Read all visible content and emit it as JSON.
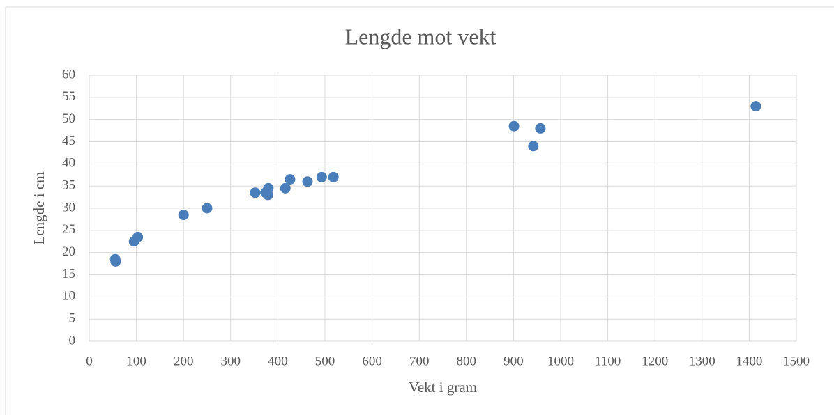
{
  "chart_data": {
    "type": "scatter",
    "title": "Lengde mot vekt",
    "x_label": "Vekt i gram",
    "y_label": "Lengde i cm",
    "series": [
      {
        "name": "Lengde",
        "color": "#4a7ebb",
        "x": [
          55,
          56,
          95,
          103,
          200,
          250,
          352,
          374,
          379,
          380,
          416,
          426,
          463,
          493,
          518,
          901,
          942,
          957,
          1414
        ],
        "values": [
          18.5,
          18,
          22.5,
          23.5,
          28.5,
          30,
          33.5,
          33.5,
          33,
          34.5,
          34.5,
          36.5,
          36,
          37,
          37,
          48.5,
          44,
          48,
          53
        ]
      }
    ],
    "xlim": [
      0,
      1500
    ],
    "xticks": [
      0,
      100,
      200,
      300,
      400,
      500,
      600,
      700,
      800,
      900,
      1000,
      1100,
      1200,
      1300,
      1400,
      1500
    ],
    "ylim": [
      0,
      60
    ],
    "yticks": [
      0,
      5,
      10,
      15,
      20,
      25,
      30,
      35,
      40,
      45,
      50,
      55,
      60
    ],
    "grid": true
  }
}
